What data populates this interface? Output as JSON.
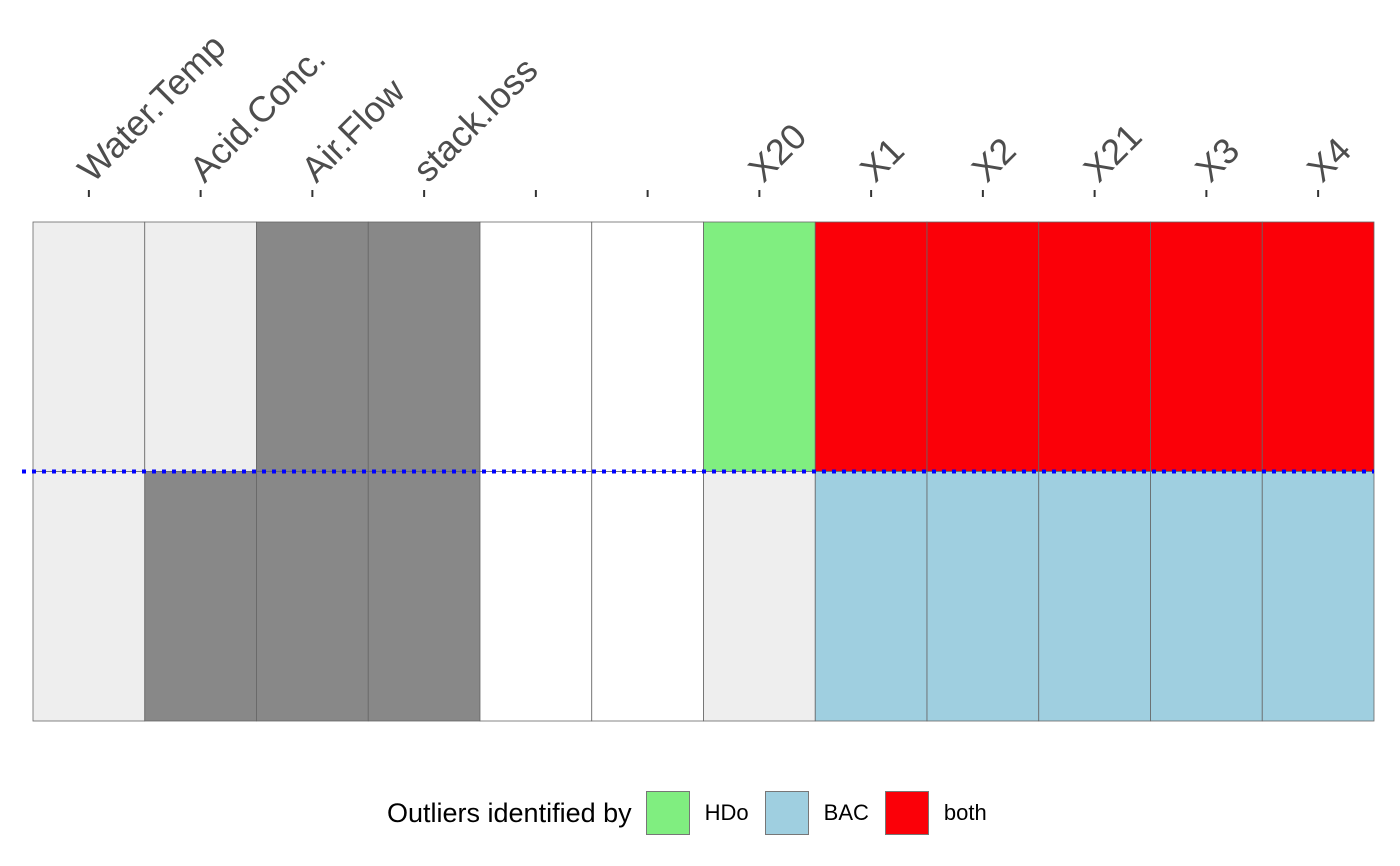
{
  "chart_data": {
    "type": "heatmap",
    "columns": [
      "Water.Temp",
      "Acid.Conc.",
      "Air.Flow",
      "stack.loss",
      "",
      "",
      "X20",
      "X1",
      "X2",
      "X21",
      "X3",
      "X4"
    ],
    "rows": 2,
    "cells": [
      [
        "lightgray",
        "lightgray",
        "darkgray",
        "darkgray",
        "white",
        "white",
        "HDo",
        "both",
        "both",
        "both",
        "both",
        "both"
      ],
      [
        "lightgray",
        "darkgray",
        "darkgray",
        "darkgray",
        "white",
        "white",
        "lightgray",
        "BAC",
        "BAC",
        "BAC",
        "BAC",
        "BAC"
      ]
    ],
    "divider": {
      "style": "dotted",
      "color": "#0000ff"
    }
  },
  "colors": {
    "lightgray": "#eeeeee",
    "darkgray": "#888888",
    "white": "#ffffff",
    "HDo": "#80ee80",
    "BAC": "#9fcfe0",
    "both": "#fb0008",
    "gridline": "#666666",
    "tick_label": "#4d4d4d",
    "divider": "#0000ff"
  },
  "legend": {
    "title": "Outliers identified by",
    "items": [
      {
        "key": "HDo",
        "label": "HDo",
        "color": "#80ee80"
      },
      {
        "key": "BAC",
        "label": "BAC",
        "color": "#9fcfe0"
      },
      {
        "key": "both",
        "label": "both",
        "color": "#fb0008"
      }
    ]
  }
}
